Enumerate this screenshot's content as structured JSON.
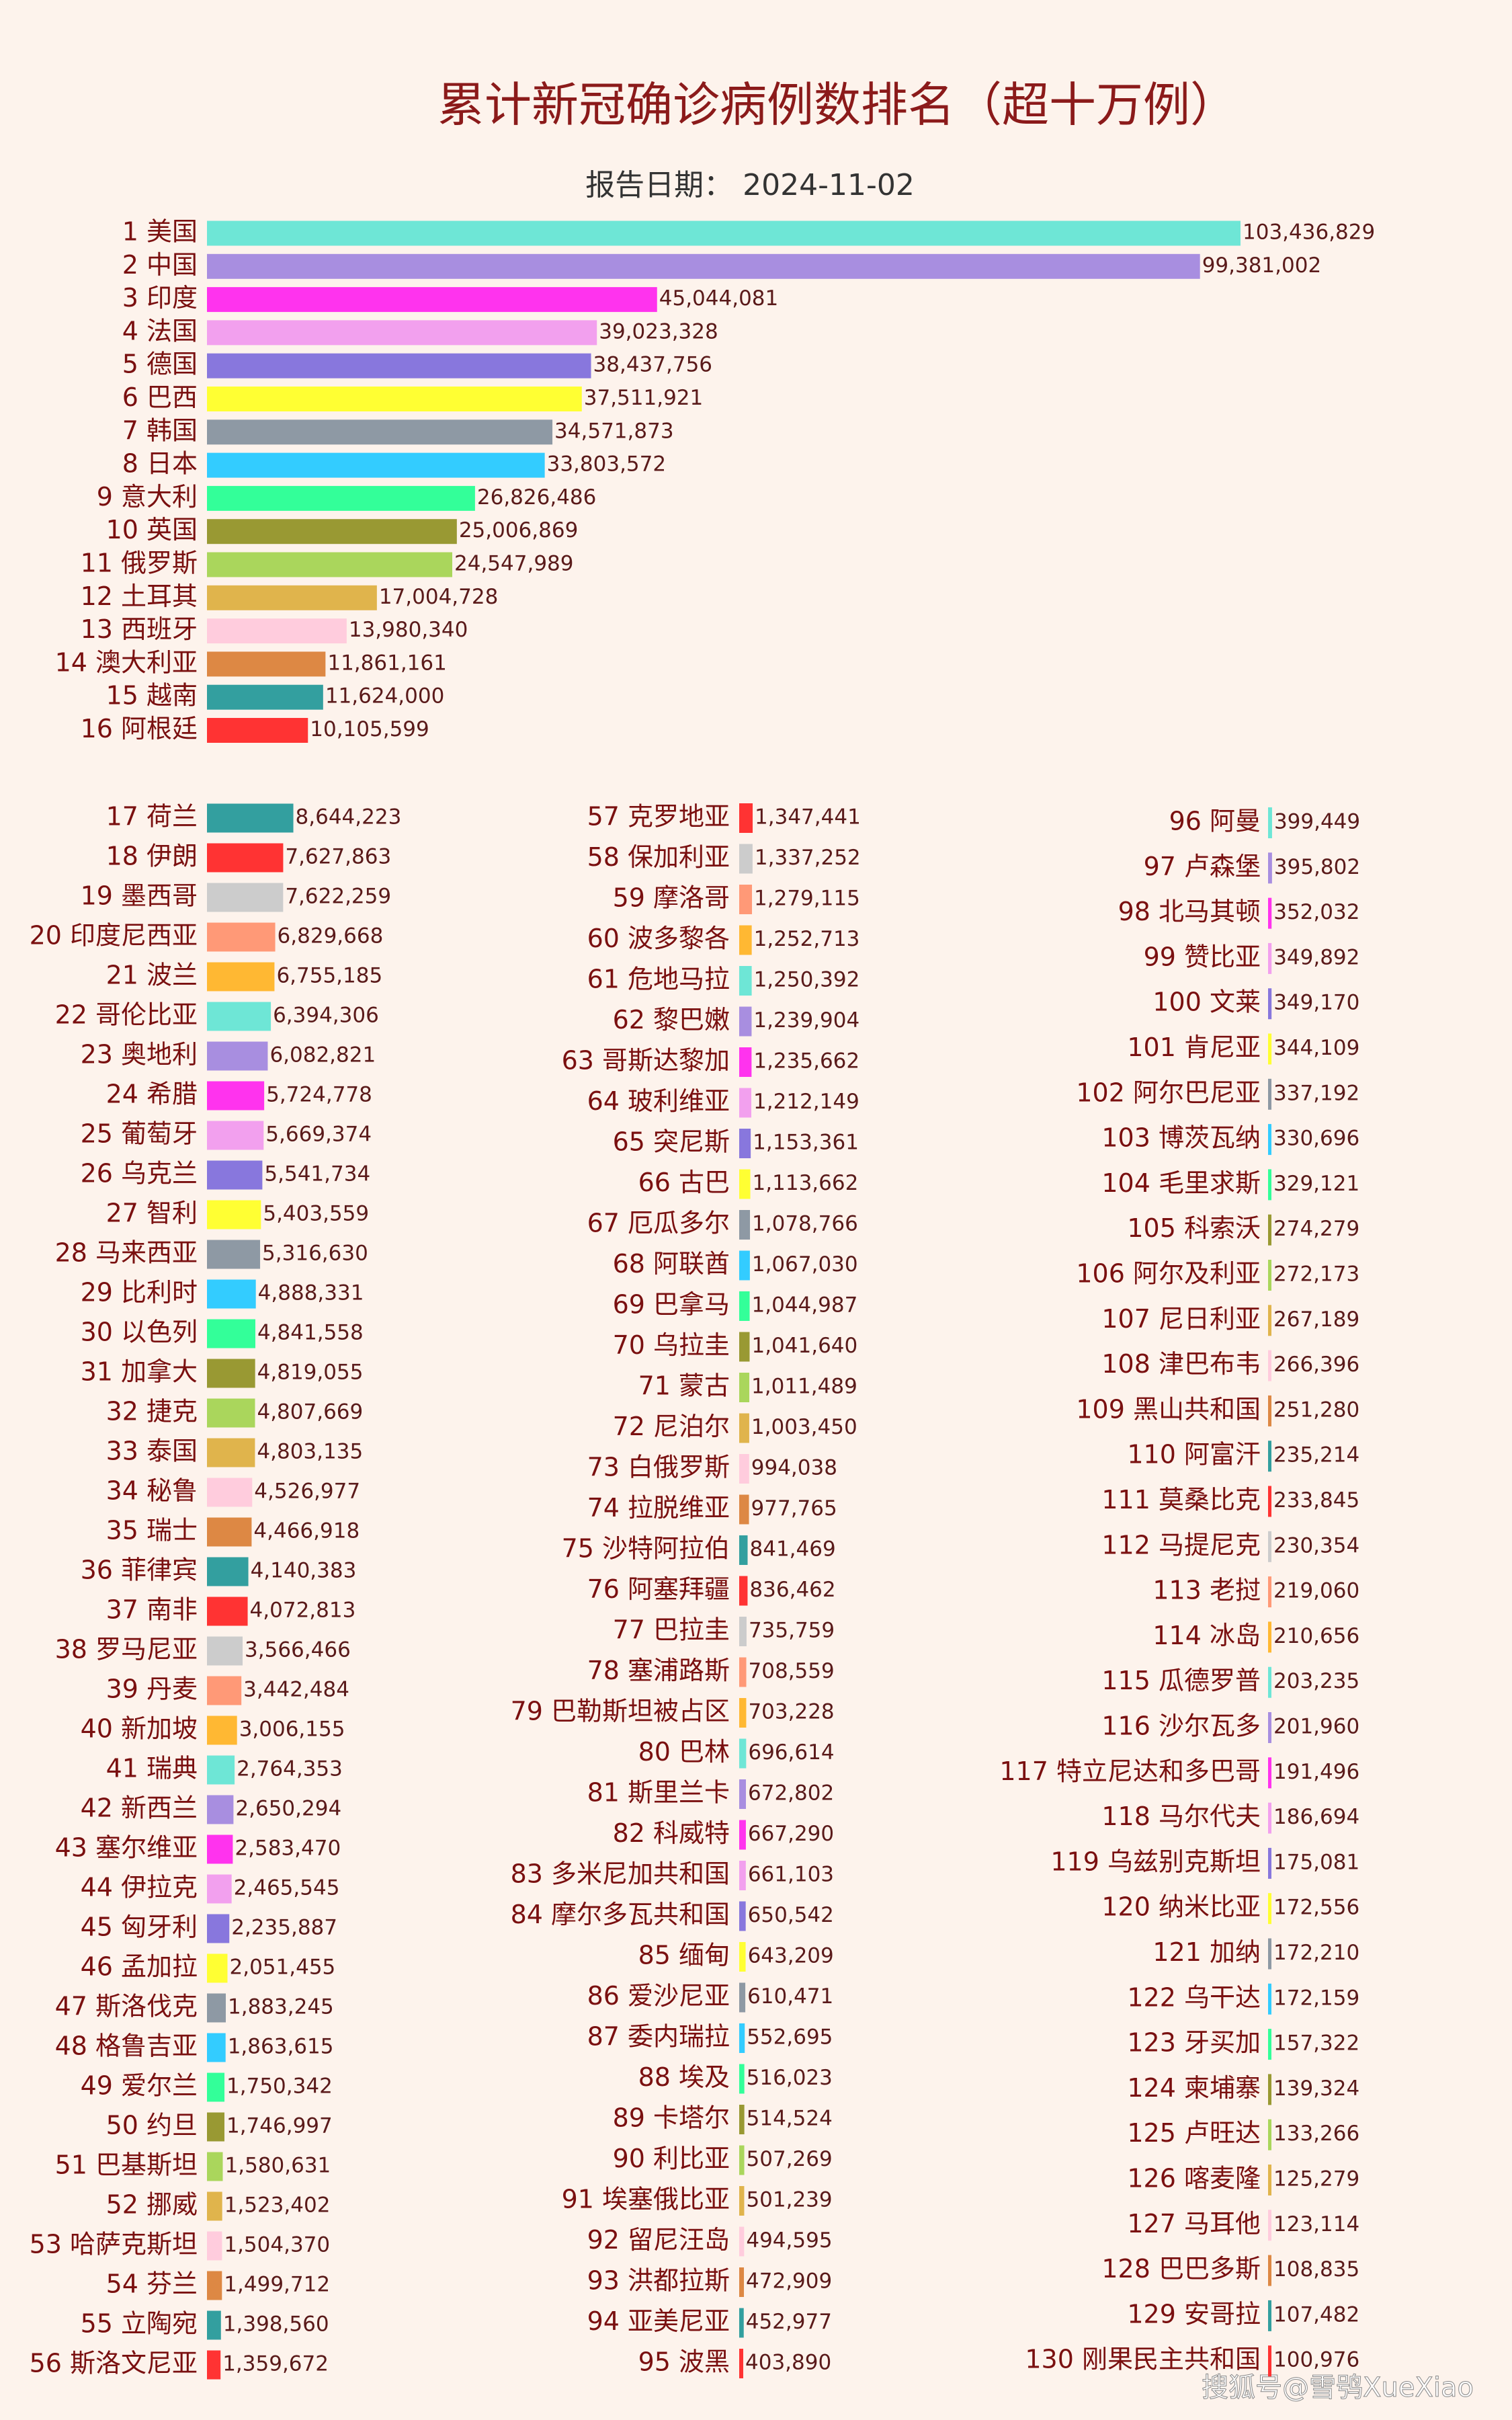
{
  "chart_data": {
    "type": "bar",
    "title": "累计新冠确诊病例数排名（超十万例）",
    "subtitle": "报告日期： 2024-11-02",
    "watermark": "搜狐号@雪鸮XueXiao",
    "categories": [
      "1 美国",
      "2 中国",
      "3 印度",
      "4 法国",
      "5 德国",
      "6 巴西",
      "7 韩国",
      "8 日本",
      "9 意大利",
      "10 英国",
      "11 俄罗斯",
      "12 土耳其",
      "13 西班牙",
      "14 澳大利亚",
      "15 越南",
      "16 阿根廷",
      "17 荷兰",
      "18 伊朗",
      "19 墨西哥",
      "20 印度尼西亚",
      "21 波兰",
      "22 哥伦比亚",
      "23 奥地利",
      "24 希腊",
      "25 葡萄牙",
      "26 乌克兰",
      "27 智利",
      "28 马来西亚",
      "29 比利时",
      "30 以色列",
      "31 加拿大",
      "32 捷克",
      "33 泰国",
      "34 秘鲁",
      "35 瑞士",
      "36 菲律宾",
      "37 南非",
      "38 罗马尼亚",
      "39 丹麦",
      "40 新加坡",
      "41 瑞典",
      "42 新西兰",
      "43 塞尔维亚",
      "44 伊拉克",
      "45 匈牙利",
      "46 孟加拉",
      "47 斯洛伐克",
      "48 格鲁吉亚",
      "49 爱尔兰",
      "50 约旦",
      "51 巴基斯坦",
      "52 挪威",
      "53 哈萨克斯坦",
      "54 芬兰",
      "55 立陶宛",
      "56 斯洛文尼亚",
      "57 克罗地亚",
      "58 保加利亚",
      "59 摩洛哥",
      "60 波多黎各",
      "61 危地马拉",
      "62 黎巴嫩",
      "63 哥斯达黎加",
      "64 玻利维亚",
      "65 突尼斯",
      "66 古巴",
      "67 厄瓜多尔",
      "68 阿联酋",
      "69 巴拿马",
      "70 乌拉圭",
      "71 蒙古",
      "72 尼泊尔",
      "73 白俄罗斯",
      "74 拉脱维亚",
      "75 沙特阿拉伯",
      "76 阿塞拜疆",
      "77 巴拉圭",
      "78 塞浦路斯",
      "79 巴勒斯坦被占区",
      "80 巴林",
      "81 斯里兰卡",
      "82 科威特",
      "83 多米尼加共和国",
      "84 摩尔多瓦共和国",
      "85 缅甸",
      "86 爱沙尼亚",
      "87 委内瑞拉",
      "88 埃及",
      "89 卡塔尔",
      "90 利比亚",
      "91 埃塞俄比亚",
      "92 留尼汪岛",
      "93 洪都拉斯",
      "94 亚美尼亚",
      "95 波黑",
      "96 阿曼",
      "97 卢森堡",
      "98 北马其顿",
      "99 赞比亚",
      "100 文莱",
      "101 肯尼亚",
      "102 阿尔巴尼亚",
      "103 博茨瓦纳",
      "104 毛里求斯",
      "105 科索沃",
      "106 阿尔及利亚",
      "107 尼日利亚",
      "108 津巴布韦",
      "109 黑山共和国",
      "110 阿富汗",
      "111 莫桑比克",
      "112 马提尼克",
      "113 老挝",
      "114 冰岛",
      "115 瓜德罗普",
      "116 沙尔瓦多",
      "117 特立尼达和多巴哥",
      "118 马尔代夫",
      "119 乌兹别克斯坦",
      "120 纳米比亚",
      "121 加纳",
      "122 乌干达",
      "123 牙买加",
      "124 柬埔寨",
      "125 卢旺达",
      "126 喀麦隆",
      "127 马耳他",
      "128 巴巴多斯",
      "129 安哥拉",
      "130 刚果民主共和国"
    ],
    "values": [
      103436829,
      99381002,
      45044081,
      39023328,
      38437756,
      37511921,
      34571873,
      33803572,
      26826486,
      25006869,
      24547989,
      17004728,
      13980340,
      11861161,
      11624000,
      10105599,
      8644223,
      7627863,
      7622259,
      6829668,
      6755185,
      6394306,
      6082821,
      5724778,
      5669374,
      5541734,
      5403559,
      5316630,
      4888331,
      4841558,
      4819055,
      4807669,
      4803135,
      4526977,
      4466918,
      4140383,
      4072813,
      3566466,
      3442484,
      3006155,
      2764353,
      2650294,
      2583470,
      2465545,
      2235887,
      2051455,
      1883245,
      1863615,
      1750342,
      1746997,
      1580631,
      1523402,
      1504370,
      1499712,
      1398560,
      1359672,
      1347441,
      1337252,
      1279115,
      1252713,
      1250392,
      1239904,
      1235662,
      1212149,
      1153361,
      1113662,
      1078766,
      1067030,
      1044987,
      1041640,
      1011489,
      1003450,
      994038,
      977765,
      841469,
      836462,
      735759,
      708559,
      703228,
      696614,
      672802,
      667290,
      661103,
      650542,
      643209,
      610471,
      552695,
      516023,
      514524,
      507269,
      501239,
      494595,
      472909,
      452977,
      403890,
      399449,
      395802,
      352032,
      349892,
      349170,
      344109,
      337192,
      330696,
      329121,
      274279,
      272173,
      267189,
      266396,
      251280,
      235214,
      233845,
      230354,
      219060,
      210656,
      203235,
      201960,
      191496,
      186694,
      175081,
      172556,
      172210,
      172159,
      157322,
      139324,
      133266,
      125279,
      123114,
      108835,
      107482,
      100976
    ],
    "value_labels": [
      "103,436,829",
      "99,381,002",
      "45,044,081",
      "39,023,328",
      "38,437,756",
      "37,511,921",
      "34,571,873",
      "33,803,572",
      "26,826,486",
      "25,006,869",
      "24,547,989",
      "17,004,728",
      "13,980,340",
      "11,861,161",
      "11,624,000",
      "10,105,599",
      "8,644,223",
      "7,627,863",
      "7,622,259",
      "6,829,668",
      "6,755,185",
      "6,394,306",
      "6,082,821",
      "5,724,778",
      "5,669,374",
      "5,541,734",
      "5,403,559",
      "5,316,630",
      "4,888,331",
      "4,841,558",
      "4,819,055",
      "4,807,669",
      "4,803,135",
      "4,526,977",
      "4,466,918",
      "4,140,383",
      "4,072,813",
      "3,566,466",
      "3,442,484",
      "3,006,155",
      "2,764,353",
      "2,650,294",
      "2,583,470",
      "2,465,545",
      "2,235,887",
      "2,051,455",
      "1,883,245",
      "1,863,615",
      "1,750,342",
      "1,746,997",
      "1,580,631",
      "1,523,402",
      "1,504,370",
      "1,499,712",
      "1,398,560",
      "1,359,672",
      "1,347,441",
      "1,337,252",
      "1,279,115",
      "1,252,713",
      "1,250,392",
      "1,239,904",
      "1,235,662",
      "1,212,149",
      "1,153,361",
      "1,113,662",
      "1,078,766",
      "1,067,030",
      "1,044,987",
      "1,041,640",
      "1,011,489",
      "1,003,450",
      "994,038",
      "977,765",
      "841,469",
      "836,462",
      "735,759",
      "708,559",
      "703,228",
      "696,614",
      "672,802",
      "667,290",
      "661,103",
      "650,542",
      "643,209",
      "610,471",
      "552,695",
      "516,023",
      "514,524",
      "507,269",
      "501,239",
      "494,595",
      "472,909",
      "452,977",
      "403,890",
      "399,449",
      "395,802",
      "352,032",
      "349,892",
      "349,170",
      "344,109",
      "337,192",
      "330,696",
      "329,121",
      "274,279",
      "272,173",
      "267,189",
      "266,396",
      "251,280",
      "235,214",
      "233,845",
      "230,354",
      "219,060",
      "210,656",
      "203,235",
      "201,960",
      "191,496",
      "186,694",
      "175,081",
      "172,556",
      "172,210",
      "172,159",
      "157,322",
      "139,324",
      "133,266",
      "125,279",
      "123,114",
      "108,835",
      "107,482",
      "100,976"
    ],
    "colors": [
      "#6ee6d6",
      "#a88ee0",
      "#ff33ee",
      "#f2a0ee",
      "#8877dd",
      "#ffff33",
      "#8e99a4",
      "#33ccff",
      "#33ff99",
      "#999933",
      "#aad65c",
      "#e0b44c",
      "#ffccdd",
      "#dd8844",
      "#339f9f",
      "#ff3333",
      "#339f9f",
      "#ff3333",
      "#cccccc",
      "#ff9977",
      "#ffb833",
      "#6ee6d6",
      "#a88ee0",
      "#ff33ee",
      "#f2a0ee",
      "#8877dd",
      "#ffff33",
      "#8e99a4",
      "#33ccff",
      "#33ff99",
      "#999933",
      "#aad65c",
      "#e0b44c",
      "#ffccdd",
      "#dd8844",
      "#339f9f",
      "#ff3333",
      "#cccccc",
      "#ff9977",
      "#ffb833",
      "#6ee6d6",
      "#a88ee0",
      "#ff33ee",
      "#f2a0ee",
      "#8877dd",
      "#ffff33",
      "#8e99a4",
      "#33ccff",
      "#33ff99",
      "#999933",
      "#aad65c",
      "#e0b44c",
      "#ffccdd",
      "#dd8844",
      "#339f9f",
      "#ff3333",
      "#ff3333",
      "#cccccc",
      "#ff9977",
      "#ffb833",
      "#6ee6d6",
      "#a88ee0",
      "#ff33ee",
      "#f2a0ee",
      "#8877dd",
      "#ffff33",
      "#8e99a4",
      "#33ccff",
      "#33ff99",
      "#999933",
      "#aad65c",
      "#e0b44c",
      "#ffccdd",
      "#dd8844",
      "#339f9f",
      "#ff3333",
      "#cccccc",
      "#ff9977",
      "#ffb833",
      "#6ee6d6",
      "#a88ee0",
      "#ff33ee",
      "#f2a0ee",
      "#8877dd",
      "#ffff33",
      "#8e99a4",
      "#33ccff",
      "#33ff99",
      "#999933",
      "#aad65c",
      "#e0b44c",
      "#ffccdd",
      "#dd8844",
      "#339f9f",
      "#ff3333",
      "#6ee6d6",
      "#a88ee0",
      "#ff33ee",
      "#f2a0ee",
      "#8877dd",
      "#ffff33",
      "#8e99a4",
      "#33ccff",
      "#33ff99",
      "#999933",
      "#aad65c",
      "#e0b44c",
      "#ffccdd",
      "#dd8844",
      "#339f9f",
      "#ff3333",
      "#cccccc",
      "#ff9977",
      "#ffb833",
      "#6ee6d6",
      "#a88ee0",
      "#ff33ee",
      "#f2a0ee",
      "#8877dd",
      "#ffff33",
      "#8e99a4",
      "#33ccff",
      "#33ff99",
      "#999933",
      "#aad65c",
      "#e0b44c",
      "#ffccdd",
      "#dd8844",
      "#339f9f",
      "#ff3333"
    ]
  }
}
